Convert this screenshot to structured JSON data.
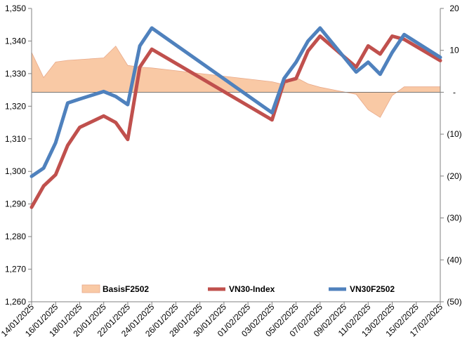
{
  "chart_data": {
    "type": "line",
    "x": [
      "14/01/2025",
      "15/01/2025",
      "16/01/2025",
      "17/01/2025",
      "18/01/2025",
      "20/01/2025",
      "21/01/2025",
      "22/01/2025",
      "23/01/2025",
      "24/01/2025",
      "03/02/2025",
      "04/02/2025",
      "05/02/2025",
      "06/02/2025",
      "07/02/2025",
      "10/02/2025",
      "11/02/2025",
      "12/02/2025",
      "13/02/2025",
      "14/02/2025",
      "17/02/2025"
    ],
    "x_tick_labels": [
      "14/01/2025",
      "16/01/2025",
      "18/01/2025",
      "20/01/2025",
      "22/01/2025",
      "24/01/2025",
      "26/01/2025",
      "28/01/2025",
      "30/01/2025",
      "01/02/2025",
      "03/02/2025",
      "05/02/2025",
      "07/02/2025",
      "09/02/2025",
      "11/02/2025",
      "13/02/2025",
      "15/02/2025",
      "17/02/2025"
    ],
    "xlim": [
      "14/01/2025",
      "17/02/2025"
    ],
    "y_left": {
      "lim": [
        1260,
        1350
      ],
      "ticks": [
        "1,260",
        "1,270",
        "1,280",
        "1,290",
        "1,300",
        "1,310",
        "1,320",
        "1,330",
        "1,340",
        "1,350"
      ]
    },
    "y_right": {
      "lim": [
        -50,
        20
      ],
      "ticks": [
        "(50)",
        "(40)",
        "(30)",
        "(20)",
        "(10)",
        "-",
        "10",
        "20"
      ]
    },
    "series": [
      {
        "name": "BasisF2502",
        "type": "area",
        "axis": "right",
        "color": "#f9c9a5",
        "stroke": "#e8a98a",
        "values": [
          9.5,
          3.5,
          7.2,
          7.6,
          7.8,
          8.2,
          11.0,
          6.4,
          6.0,
          5.8,
          2.5,
          1.8,
          3.5,
          2.0,
          1.2,
          -0.5,
          -4.2,
          -6.0,
          -0.8,
          1.3,
          1.3
        ]
      },
      {
        "name": "VN30-Index",
        "type": "line",
        "axis": "left",
        "color": "#c0504d",
        "values": [
          1289.0,
          1295.5,
          1299.0,
          1308.0,
          1313.5,
          1317.0,
          1315.0,
          1309.8,
          1332.0,
          1337.5,
          1315.8,
          1327.5,
          1328.5,
          1337.0,
          1341.5,
          1332.0,
          1338.5,
          1336.0,
          1341.5,
          1340.5,
          1334.0
        ]
      },
      {
        "name": "VN30F2502",
        "type": "line",
        "axis": "left",
        "color": "#4f81bd",
        "values": [
          1298.5,
          1301.0,
          1308.8,
          1321.0,
          1322.2,
          1324.5,
          1323.0,
          1320.5,
          1338.5,
          1344.0,
          1318.0,
          1328.5,
          1333.5,
          1340.0,
          1344.0,
          1330.5,
          1333.5,
          1329.8,
          1336.5,
          1342.0,
          1335.0
        ]
      }
    ],
    "legend": {
      "position": "bottom-inside",
      "entries": [
        "BasisF2502",
        "VN30-Index",
        "VN30F2502"
      ]
    },
    "grid": false
  }
}
